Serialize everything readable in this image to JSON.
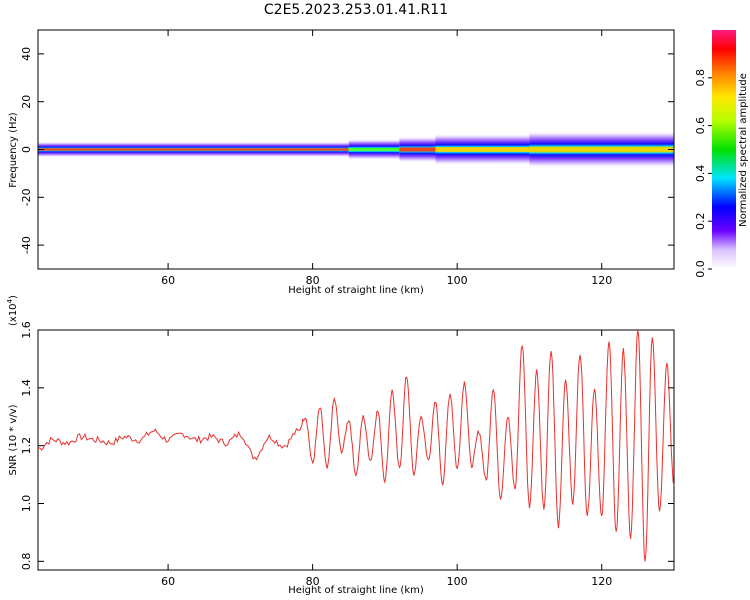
{
  "figure": {
    "title": "C2E5.2023.253.01.41.R11"
  },
  "chart_data": [
    {
      "type": "heatmap",
      "xlabel": "Height of straight line (km)",
      "ylabel": "Frequency (Hz)",
      "xlim": [
        42,
        130
      ],
      "ylim": [
        -50,
        50
      ],
      "xticks": [
        "60",
        "80",
        "100",
        "120"
      ],
      "xtick_values": [
        60,
        80,
        100,
        120
      ],
      "yticks": [
        "-40",
        "-20",
        "0",
        "20",
        "40"
      ],
      "ytick_values": [
        -40,
        -20,
        0,
        20,
        40
      ],
      "colorbar": {
        "label": "Normalized spectral amplitude",
        "range": [
          0,
          1
        ],
        "ticks": [
          "0.0",
          "0.2",
          "0.4",
          "0.6",
          "0.8"
        ],
        "tick_values": [
          0.0,
          0.2,
          0.4,
          0.6,
          0.8
        ]
      },
      "description_band_center_hz": 0,
      "band_segments": [
        {
          "x": [
            42,
            85
          ],
          "halfwidth_hz": 1.5,
          "peak": 0.85
        },
        {
          "x": [
            85,
            92
          ],
          "halfwidth_hz": 2.0,
          "peak": 0.55
        },
        {
          "x": [
            92,
            97
          ],
          "halfwidth_hz": 2.5,
          "peak": 0.9
        },
        {
          "x": [
            97,
            110
          ],
          "halfwidth_hz": 3.0,
          "peak": 0.7
        },
        {
          "x": [
            110,
            130
          ],
          "halfwidth_hz": 3.5,
          "peak": 0.8
        }
      ]
    },
    {
      "type": "line",
      "xlabel": "Height of straight line (km)",
      "ylabel": "SNR (10 * v/v)",
      "yscale_label": "(x10",
      "yscale_exp": "4",
      "yscale_close": ")",
      "xlim": [
        42,
        130
      ],
      "ylim": [
        0.77,
        1.6
      ],
      "xticks": [
        "60",
        "80",
        "100",
        "120"
      ],
      "xtick_values": [
        60,
        80,
        100,
        120
      ],
      "yticks": [
        "0.8",
        "1.0",
        "1.2",
        "1.4",
        "1.6"
      ],
      "ytick_values": [
        0.8,
        1.0,
        1.2,
        1.4,
        1.6
      ],
      "series": [
        {
          "color": "#e8312e",
          "x": [
            42,
            44,
            46,
            48,
            50,
            52,
            54,
            56,
            58,
            60,
            62,
            64,
            66,
            68,
            70,
            72,
            74,
            76,
            78,
            79,
            80,
            81,
            82,
            83,
            84,
            85,
            86,
            87,
            88,
            89,
            90,
            91,
            92,
            93,
            94,
            95,
            96,
            97,
            98,
            99,
            100,
            101,
            102,
            103,
            104,
            105,
            106,
            107,
            108,
            109,
            110,
            111,
            112,
            113,
            114,
            115,
            116,
            117,
            118,
            119,
            120,
            121,
            122,
            123,
            124,
            125,
            126,
            127,
            128,
            129,
            130
          ],
          "y": [
            1.19,
            1.22,
            1.21,
            1.23,
            1.22,
            1.21,
            1.23,
            1.22,
            1.25,
            1.22,
            1.24,
            1.22,
            1.23,
            1.21,
            1.24,
            1.16,
            1.23,
            1.2,
            1.25,
            1.3,
            1.14,
            1.33,
            1.12,
            1.36,
            1.18,
            1.29,
            1.1,
            1.3,
            1.15,
            1.32,
            1.08,
            1.39,
            1.12,
            1.44,
            1.1,
            1.3,
            1.15,
            1.35,
            1.07,
            1.38,
            1.12,
            1.42,
            1.13,
            1.25,
            1.08,
            1.4,
            1.02,
            1.3,
            1.05,
            1.55,
            0.99,
            1.46,
            0.98,
            1.53,
            0.92,
            1.43,
            1.0,
            1.52,
            0.96,
            1.4,
            0.95,
            1.56,
            0.9,
            1.53,
            0.88,
            1.6,
            0.8,
            1.58,
            0.98,
            1.48,
            1.06
          ]
        }
      ]
    }
  ]
}
